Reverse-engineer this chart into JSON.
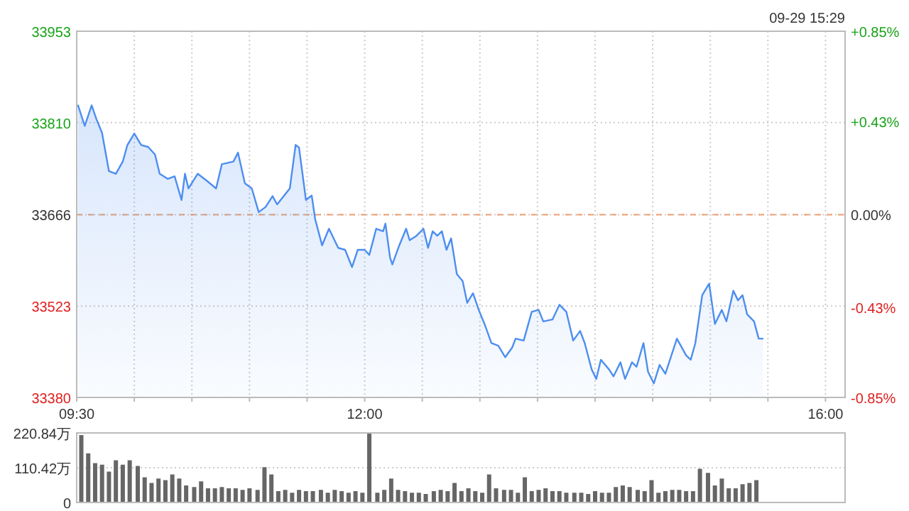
{
  "chart_data": [
    {
      "type": "area",
      "subtitle": "09-29 15:29",
      "xlim": [
        9.5,
        16.17
      ],
      "xticks": [
        {
          "value": 9.5,
          "label": "09:30"
        },
        {
          "value": 10,
          "label": null
        },
        {
          "value": 10.5,
          "label": null
        },
        {
          "value": 11,
          "label": null
        },
        {
          "value": 11.5,
          "label": null
        },
        {
          "value": 12,
          "label": "12:00"
        },
        {
          "value": 12.5,
          "label": null
        },
        {
          "value": 13,
          "label": null
        },
        {
          "value": 13.5,
          "label": null
        },
        {
          "value": 14,
          "label": null
        },
        {
          "value": 14.5,
          "label": null
        },
        {
          "value": 15,
          "label": null
        },
        {
          "value": 15.5,
          "label": null
        },
        {
          "value": 16,
          "label": "16:00"
        }
      ],
      "ylim": [
        33380,
        33953
      ],
      "yticks": [
        33380,
        33523,
        33666,
        33810,
        33953
      ],
      "y2lim": [
        -0.85,
        0.85
      ],
      "y2ticks": [
        {
          "value": -0.85,
          "label": "-0.85%"
        },
        {
          "value": -0.43,
          "label": "-0.43%"
        },
        {
          "value": 0,
          "label": "0.00%"
        },
        {
          "value": 0.43,
          "label": "+0.43%"
        },
        {
          "value": 0.85,
          "label": "+0.85%"
        }
      ],
      "grid": true,
      "ref_lines": [
        {
          "axis": "y",
          "value": 33666,
          "color": "#f0a070",
          "line_style": "dashed"
        }
      ],
      "x": [
        9.51,
        9.57,
        9.63,
        9.67,
        9.72,
        9.78,
        9.84,
        9.9,
        9.94,
        10.0,
        10.06,
        10.12,
        10.18,
        10.22,
        10.29,
        10.35,
        10.41,
        10.44,
        10.47,
        10.55,
        10.63,
        10.71,
        10.76,
        10.86,
        10.9,
        10.96,
        11.02,
        11.08,
        11.14,
        11.2,
        11.24,
        11.35,
        11.4,
        11.43,
        11.49,
        11.54,
        11.57,
        11.63,
        11.69,
        11.77,
        11.83,
        11.89,
        11.94,
        12.0,
        12.04,
        12.1,
        12.16,
        12.18,
        12.22,
        12.24,
        12.3,
        12.36,
        12.39,
        12.45,
        12.51,
        12.55,
        12.59,
        12.63,
        12.67,
        12.71,
        12.75,
        12.8,
        12.85,
        12.89,
        12.94,
        12.99,
        13.04,
        13.1,
        13.16,
        13.22,
        13.28,
        13.31,
        13.38,
        13.45,
        13.51,
        13.55,
        13.63,
        13.69,
        13.75,
        13.81,
        13.87,
        13.91,
        13.97,
        14.01,
        14.05,
        14.12,
        14.16,
        14.22,
        14.26,
        14.32,
        14.36,
        14.42,
        14.46,
        14.51,
        14.56,
        14.61,
        14.71,
        14.79,
        14.83,
        14.87,
        14.93,
        14.99,
        15.04,
        15.1,
        15.14,
        15.2,
        15.24,
        15.28,
        15.32,
        15.38,
        15.42,
        15.46
      ],
      "series": [
        {
          "color": "#4d8ef0",
          "values": [
            33838,
            33805,
            33837,
            33816,
            33794,
            33734,
            33730,
            33749,
            33775,
            33793,
            33775,
            33772,
            33760,
            33730,
            33722,
            33726,
            33689,
            33730,
            33707,
            33730,
            33719,
            33707,
            33745,
            33749,
            33763,
            33715,
            33707,
            33670,
            33678,
            33695,
            33682,
            33707,
            33775,
            33771,
            33689,
            33696,
            33659,
            33618,
            33644,
            33614,
            33611,
            33584,
            33611,
            33611,
            33603,
            33644,
            33640,
            33652,
            33599,
            33588,
            33618,
            33644,
            33626,
            33633,
            33644,
            33614,
            33640,
            33633,
            33640,
            33611,
            33629,
            33573,
            33562,
            33528,
            33543,
            33517,
            33495,
            33465,
            33461,
            33443,
            33458,
            33472,
            33469,
            33514,
            33517,
            33499,
            33502,
            33525,
            33514,
            33469,
            33484,
            33465,
            33424,
            33409,
            33439,
            33424,
            33413,
            33435,
            33409,
            33435,
            33428,
            33465,
            33420,
            33402,
            33431,
            33417,
            33472,
            33446,
            33439,
            33465,
            33540,
            33558,
            33495,
            33517,
            33499,
            33547,
            33532,
            33540,
            33510,
            33499,
            33472,
            33472
          ]
        }
      ]
    },
    {
      "type": "bar",
      "xlim": [
        9.5,
        16.17
      ],
      "tick_labels": "y",
      "grid": "y",
      "ylim": [
        0,
        220.84
      ],
      "yticks": [
        0,
        {
          "value": 110.42,
          "label": "110.42万"
        },
        {
          "value": 220.84,
          "label": "220.84万"
        }
      ],
      "x": [
        9.54,
        9.6,
        9.66,
        9.72,
        9.78,
        9.84,
        9.9,
        9.96,
        10.03,
        10.09,
        10.15,
        10.21,
        10.27,
        10.33,
        10.39,
        10.45,
        10.52,
        10.58,
        10.64,
        10.7,
        10.76,
        10.82,
        10.88,
        10.94,
        11.0,
        11.07,
        11.13,
        11.19,
        11.25,
        11.31,
        11.37,
        11.43,
        11.49,
        11.55,
        11.62,
        11.68,
        11.74,
        11.8,
        11.86,
        11.92,
        11.98,
        12.04,
        12.11,
        12.17,
        12.23,
        12.29,
        12.35,
        12.41,
        12.47,
        12.53,
        12.6,
        12.66,
        12.72,
        12.78,
        12.84,
        12.9,
        12.96,
        13.02,
        13.08,
        13.14,
        13.21,
        13.27,
        13.33,
        13.39,
        13.45,
        13.51,
        13.57,
        13.63,
        13.69,
        13.75,
        13.82,
        13.88,
        13.94,
        14.0,
        14.06,
        14.12,
        14.18,
        14.24,
        14.3,
        14.37,
        14.43,
        14.49,
        14.55,
        14.61,
        14.67,
        14.73,
        14.79,
        14.85,
        14.91,
        14.98,
        15.04,
        15.1,
        15.16,
        15.22,
        15.28,
        15.34,
        15.4
      ],
      "series": [
        {
          "color": "#666666",
          "values": [
            214,
            156,
            125,
            120,
            98,
            134,
            120,
            134,
            116,
            80,
            62,
            76,
            71,
            89,
            76,
            54,
            49,
            67,
            45,
            45,
            49,
            45,
            45,
            40,
            45,
            40,
            112,
            89,
            36,
            40,
            31,
            40,
            36,
            36,
            40,
            31,
            40,
            36,
            31,
            36,
            31,
            220.84,
            31,
            40,
            76,
            40,
            36,
            31,
            31,
            27,
            36,
            40,
            36,
            62,
            36,
            45,
            36,
            31,
            89,
            45,
            40,
            40,
            31,
            80,
            36,
            40,
            45,
            36,
            36,
            31,
            31,
            31,
            27,
            36,
            31,
            31,
            49,
            54,
            49,
            40,
            36,
            71,
            31,
            36,
            40,
            40,
            36,
            36,
            107,
            94,
            54,
            76,
            45,
            45,
            58,
            62,
            71
          ]
        }
      ]
    }
  ]
}
